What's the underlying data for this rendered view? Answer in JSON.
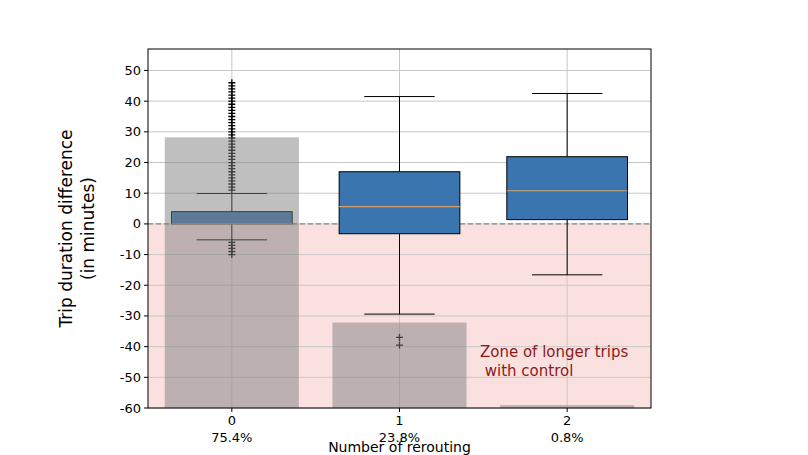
{
  "chart_data": {
    "type": "box",
    "ylabel": [
      "Trip duration difference",
      "(in minutes)"
    ],
    "xlabel": "Number of rerouting",
    "categories": [
      "0",
      "1",
      "2"
    ],
    "ylim": [
      -60,
      57
    ],
    "yticks": [
      -60,
      -50,
      -40,
      -30,
      -20,
      -10,
      0,
      10,
      20,
      30,
      40,
      50
    ],
    "y2lim": [
      0,
      100
    ],
    "grid": true,
    "reference_line": 0,
    "annotation": [
      "Zone of longer trips",
      " with control"
    ],
    "series": [
      {
        "type": "bar",
        "axis": "y2",
        "color": "#808080",
        "values": [
          75.4,
          23.8,
          0.8
        ],
        "value_labels": [
          "75.4%",
          "23.8%",
          "0.8%"
        ]
      },
      {
        "type": "box",
        "color": "#3a75b0",
        "marker": "plus",
        "values": [
          {
            "min": -5.2,
            "q1": 0,
            "median": 0,
            "q3": 4.0,
            "max": 9.9,
            "outliers": [
              11,
              12,
              13,
              14,
              15,
              16,
              17,
              18,
              19,
              20,
              21,
              22,
              23,
              24,
              25,
              26,
              27,
              28,
              29,
              30,
              31,
              32,
              33,
              34,
              35,
              36,
              37,
              38,
              39,
              40,
              41,
              42,
              43,
              44,
              45,
              46,
              -6,
              -7,
              -8,
              -9,
              -10
            ]
          },
          {
            "min": -29.4,
            "q1": -3.2,
            "median": 5.6,
            "q3": 17.0,
            "max": 41.5,
            "outliers": [
              -37,
              -39.5
            ]
          },
          {
            "min": -16.6,
            "q1": 1.4,
            "median": 10.8,
            "q3": 21.9,
            "max": 42.5,
            "outliers": []
          }
        ]
      }
    ]
  }
}
